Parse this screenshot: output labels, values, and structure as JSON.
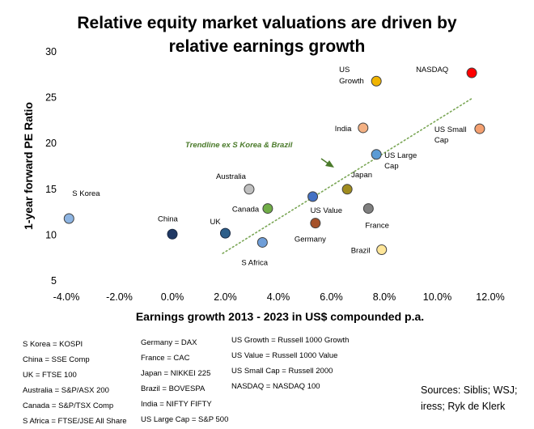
{
  "chart_data": {
    "type": "scatter",
    "title": [
      "Relative equity market valuations are driven by",
      "relative earnings growth"
    ],
    "xlabel": "Earnings growth 2013 - 2023 in US$ compounded p.a.",
    "ylabel": "1-year forward PE Ratio",
    "xlim": [
      -4,
      12
    ],
    "ylim": [
      5,
      30
    ],
    "x_ticks": [
      "-4.0%",
      "-2.0%",
      "0.0%",
      "2.0%",
      "4.0%",
      "6.0%",
      "8.0%",
      "10.0%",
      "12.0%"
    ],
    "y_ticks": [
      "5",
      "10",
      "15",
      "20",
      "25",
      "30"
    ],
    "grid": false,
    "points": [
      {
        "label": "S Korea",
        "x": -3.9,
        "y": 11.8,
        "color": "#8db4e2"
      },
      {
        "label": "China",
        "x": 0.0,
        "y": 10.1,
        "color": "#1f3864"
      },
      {
        "label": "UK",
        "x": 2.0,
        "y": 10.2,
        "color": "#2e5f8a"
      },
      {
        "label": "Australia",
        "x": 2.9,
        "y": 15.0,
        "color": "#bfbfbf"
      },
      {
        "label": "S Africa",
        "x": 3.4,
        "y": 9.2,
        "color": "#6f9ed8"
      },
      {
        "label": "Canada",
        "x": 3.6,
        "y": 12.9,
        "color": "#70ad47"
      },
      {
        "label": "US Value",
        "x": 5.3,
        "y": 14.2,
        "color": "#4472c4"
      },
      {
        "label": "Germany",
        "x": 5.4,
        "y": 11.3,
        "color": "#a5522a"
      },
      {
        "label": "Japan",
        "x": 6.6,
        "y": 15.0,
        "color": "#a08c1e"
      },
      {
        "label": "France",
        "x": 7.4,
        "y": 12.9,
        "color": "#7f7f7f"
      },
      {
        "label": "Brazil",
        "x": 7.9,
        "y": 8.4,
        "color": "#ffe699"
      },
      {
        "label": "India",
        "x": 7.2,
        "y": 21.7,
        "color": "#f4b183"
      },
      {
        "label": "US Large Cap",
        "x": 7.7,
        "y": 18.8,
        "color": "#5b9bd5"
      },
      {
        "label": "US Growth",
        "x": 7.7,
        "y": 26.8,
        "color": "#f0b400"
      },
      {
        "label": "US Small Cap",
        "x": 11.6,
        "y": 21.6,
        "color": "#f4a070"
      },
      {
        "label": "NASDAQ",
        "x": 11.3,
        "y": 27.7,
        "color": "#ff0000"
      }
    ],
    "trendline": {
      "label": "Trendline ex S Korea & Brazil",
      "x": [
        1.9,
        11.3
      ],
      "y": [
        8.0,
        24.9
      ],
      "style": "dotted",
      "color": "#7aa655"
    }
  },
  "legend": {
    "col1": [
      "S Korea = KOSPI",
      "China = SSE Comp",
      "UK = FTSE 100",
      "Australia = S&P/ASX 200",
      "Canada = S&P/TSX Comp",
      "S Africa = FTSE/JSE All Share"
    ],
    "col2": [
      "Germany = DAX",
      "France = CAC",
      "Japan = NIKKEI 225",
      "Brazil = BOVESPA",
      "India = NIFTY FIFTY",
      "US Large Cap = S&P 500"
    ],
    "col3": [
      "US Growth = Russell 1000 Growth",
      "US Value = Russell 1000 Value",
      "US Small Cap = Russell 2000",
      "NASDAQ = NASDAQ 100"
    ]
  },
  "sources": [
    "Sources: Siblis; WSJ;",
    "iress; Ryk de Klerk"
  ]
}
